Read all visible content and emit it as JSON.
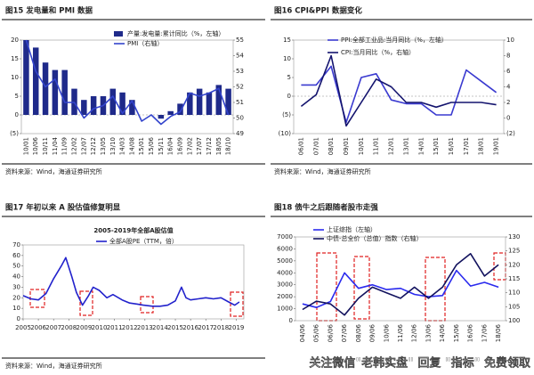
{
  "chart_data": [
    {
      "type": "bar",
      "title": "图15 发电量和 PMI 数据",
      "source": "资料来源：Wind，海通证券研究所",
      "categories": [
        "10/01",
        "10/06",
        "10/11",
        "11/04",
        "11/09",
        "12/02",
        "12/07",
        "12/12",
        "13/05",
        "13/10",
        "14/03",
        "14/08",
        "15/01",
        "15/06",
        "15/11",
        "16/04",
        "16/09",
        "17/02",
        "17/07",
        "17/12",
        "18/05",
        "18/10"
      ],
      "series": [
        {
          "name": "产量:发电量:累计同比（%，左轴）",
          "color": "#1f2a8a",
          "values": [
            20,
            18,
            14,
            12,
            12,
            7,
            4,
            5,
            5,
            7,
            6,
            4,
            0,
            0,
            -1,
            1,
            3,
            6,
            7,
            6,
            8,
            7
          ]
        },
        {
          "name": "PMI（右轴）",
          "type": "line",
          "axis": "y2",
          "color": "#3344cc",
          "values": [
            55,
            53,
            52,
            52.5,
            51,
            51,
            50,
            50.6,
            50.8,
            51.4,
            50.3,
            51.1,
            49.8,
            50.2,
            49.6,
            50.1,
            50.4,
            51.6,
            51.4,
            51.6,
            51.9,
            50.2
          ]
        }
      ],
      "ylim": [
        -5,
        20
      ],
      "yticks": [
        {
          "value": -5,
          "label": "(5)"
        },
        0,
        5,
        10,
        15,
        20
      ],
      "y2lim": [
        49,
        55
      ],
      "y2ticks": [
        49,
        50,
        51,
        52,
        53,
        54,
        55
      ]
    },
    {
      "type": "line",
      "title": "图16 CPI&PPI 数据变化",
      "source": "资料来源：Wind，海通证券研究所",
      "categories": [
        "06/01",
        "07/01",
        "08/01",
        "09/01",
        "10/01",
        "11/01",
        "12/01",
        "13/01",
        "14/01",
        "15/01",
        "16/01",
        "17/01",
        "18/01",
        "19/01"
      ],
      "series": [
        {
          "name": "PPI:全部工业品:当月同比（%，左轴）",
          "color": "#3a3ad0",
          "values": [
            3,
            3,
            8,
            -7,
            5,
            6,
            -1,
            -2,
            -2,
            -5,
            -5,
            7,
            4,
            1
          ]
        },
        {
          "name": "CPI:当月同比（%，右轴）",
          "axis": "y2",
          "color": "#14146e",
          "values": [
            1.5,
            3,
            8,
            -1,
            2,
            5,
            4,
            2,
            2,
            1.4,
            2,
            2,
            2,
            1.7
          ]
        }
      ],
      "ylim": [
        -10,
        15
      ],
      "yticks": [
        {
          "value": -10,
          "label": "(10)"
        },
        {
          "value": -5,
          "label": "(5)"
        },
        0,
        5,
        10,
        15
      ],
      "y2lim": [
        -2,
        10
      ],
      "y2ticks": [
        {
          "value": -2,
          "label": "(2)"
        },
        0,
        2,
        4,
        6,
        8,
        10
      ]
    },
    {
      "type": "line",
      "title": "图17 年初以来 A 股估值修复明显",
      "subtitle": "2005-2019年全部A股估值",
      "source": "资料来源：Wind，海通证券研究所",
      "x": [
        2005,
        2005.5,
        2006,
        2006.5,
        2007,
        2007.5,
        2007.8,
        2008.2,
        2008.5,
        2008.9,
        2009.3,
        2009.6,
        2010,
        2010.5,
        2010.9,
        2011.5,
        2012,
        2012.5,
        2012.9,
        2013.5,
        2014,
        2014.5,
        2015,
        2015.4,
        2015.7,
        2016,
        2016.5,
        2017,
        2017.5,
        2018,
        2018.5,
        2018.9,
        2019.2
      ],
      "series": [
        {
          "name": "全部A股PE（TTM，倍）",
          "color": "#2222cc",
          "values": [
            22,
            19,
            18,
            24,
            38,
            50,
            58,
            40,
            25,
            13,
            22,
            30,
            27,
            20,
            23,
            18,
            15,
            14,
            13,
            12,
            12,
            13,
            17,
            30,
            20,
            18,
            19,
            20,
            19,
            20,
            16,
            13,
            16
          ]
        }
      ],
      "xlim": [
        2005,
        2019.5
      ],
      "xticks": [
        2005,
        2006,
        2007,
        2008,
        2009,
        2010,
        2011,
        2012,
        2013,
        2014,
        2015,
        2016,
        2017,
        2018,
        2019
      ],
      "ylim": [
        0,
        70
      ],
      "yticks": [
        0,
        10,
        20,
        30,
        40,
        50,
        60,
        70
      ]
    },
    {
      "type": "line",
      "title": "图18 债牛之后跟随者股市走强",
      "categories": [
        "04/06",
        "05/06",
        "06/06",
        "07/06",
        "08/06",
        "09/06",
        "10/06",
        "11/06",
        "12/06",
        "13/06",
        "14/06",
        "15/06",
        "16/06",
        "17/06",
        "18/06"
      ],
      "series": [
        {
          "name": "上证综指（左轴）",
          "color": "#2a2aee",
          "values": [
            1400,
            1100,
            1600,
            4000,
            2700,
            3000,
            2600,
            2700,
            2200,
            2000,
            2100,
            4200,
            2900,
            3200,
            2800
          ]
        },
        {
          "name": "中债-总全价（总值）指数（右轴）",
          "axis": "y2",
          "color": "#12125e",
          "values": [
            104,
            107,
            106,
            102,
            108,
            112,
            110,
            108,
            112,
            108,
            112,
            120,
            124,
            116,
            120
          ]
        }
      ],
      "ylim": [
        0,
        7000
      ],
      "yticks": [
        0,
        1000,
        2000,
        3000,
        4000,
        5000,
        6000,
        7000
      ],
      "y2lim": [
        100,
        130
      ],
      "y2ticks": [
        100,
        105,
        110,
        115,
        120,
        125,
        130
      ]
    }
  ],
  "watermark": "关注微信\"老韩实盘\" 回复 \"指标\" 免费领取"
}
